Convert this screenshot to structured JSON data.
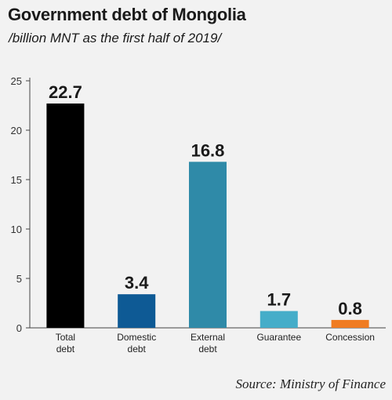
{
  "header": {
    "title": "Government debt of Mongolia",
    "subtitle": "/billion MNT as the first half of 2019/"
  },
  "footer": {
    "source": "Source: Ministry of Finance"
  },
  "chart_data": {
    "type": "bar",
    "categories": [
      [
        "Total",
        "debt"
      ],
      [
        "Domestic",
        "debt"
      ],
      [
        "External",
        "debt"
      ],
      [
        "Guarantee"
      ],
      [
        "Concession"
      ]
    ],
    "values": [
      22.7,
      3.4,
      16.8,
      1.7,
      0.8
    ],
    "data_labels": [
      "22.7",
      "3.4",
      "16.8",
      "1.7",
      "0.8"
    ],
    "colors": [
      "#000000",
      "#0e5a95",
      "#2f8aa8",
      "#45adc9",
      "#f07c22"
    ],
    "yticks": [
      0,
      5,
      10,
      15,
      20,
      25
    ],
    "ylim": [
      0,
      25
    ],
    "grid": false,
    "legend": "none"
  }
}
